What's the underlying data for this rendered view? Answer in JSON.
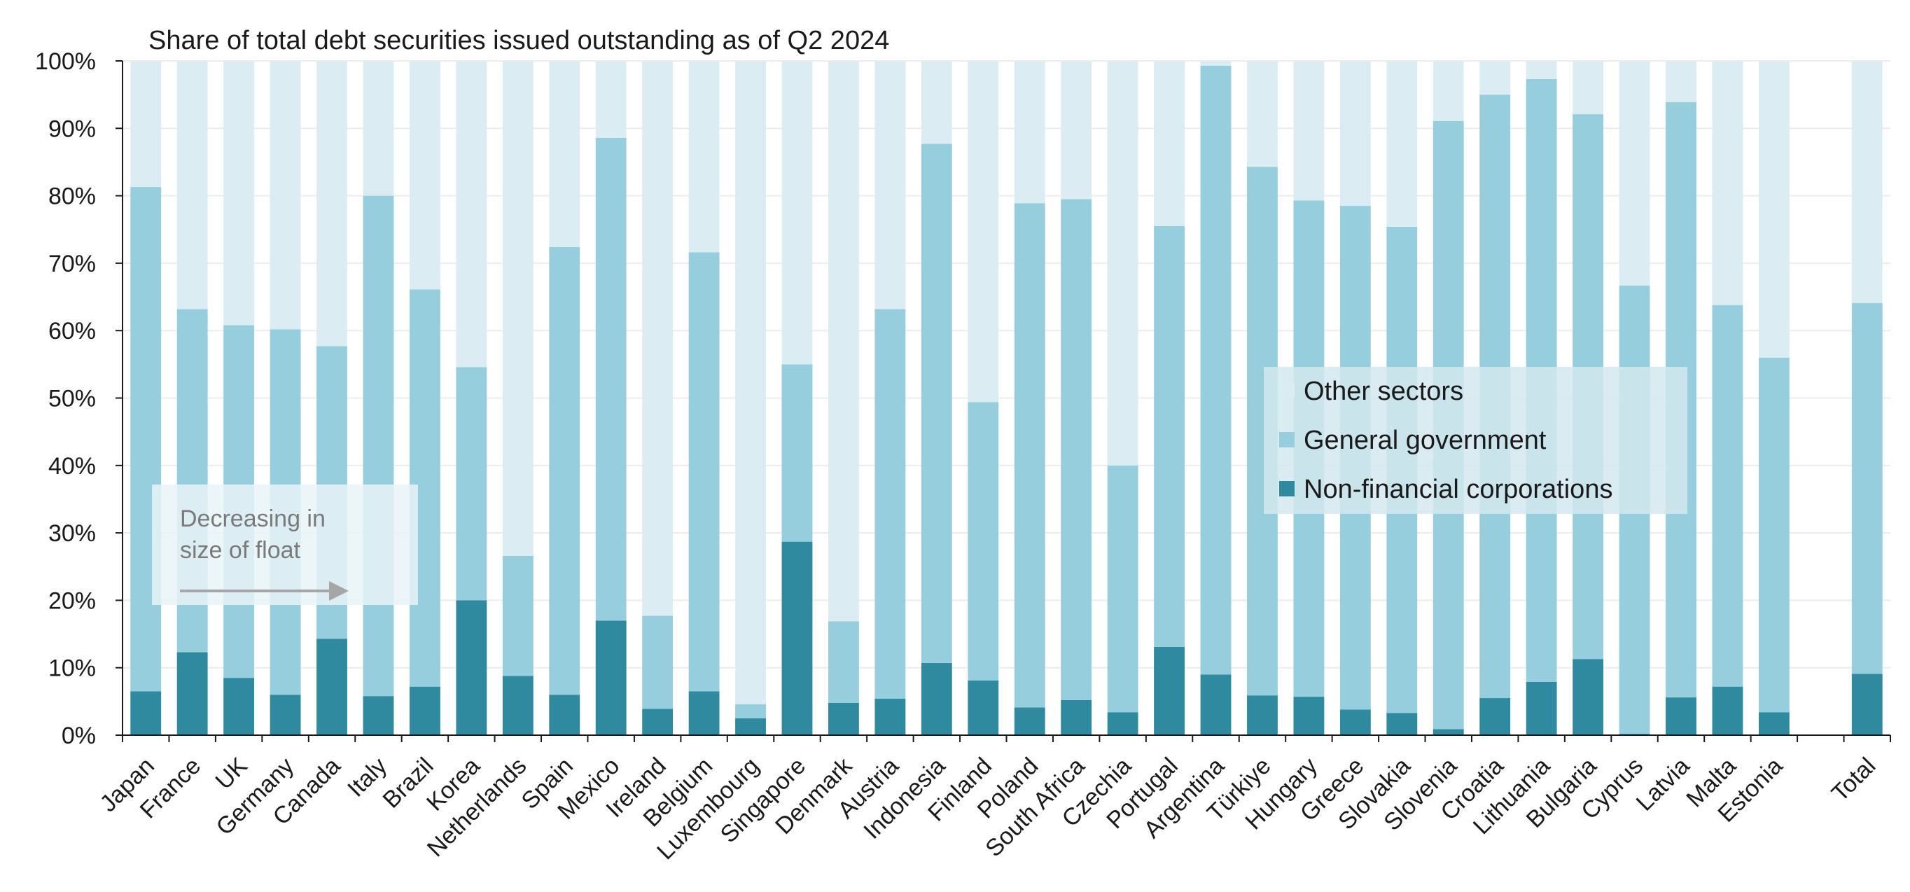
{
  "chart_data": {
    "type": "bar",
    "stacked": true,
    "title": "Share of total debt securities issued outstanding as of Q2 2024",
    "xlabel": "",
    "ylabel": "",
    "ylim": [
      0,
      100
    ],
    "yticks": [
      "0%",
      "10%",
      "20%",
      "30%",
      "40%",
      "50%",
      "60%",
      "70%",
      "80%",
      "90%",
      "100%"
    ],
    "grid": true,
    "legend_position": "center-right",
    "categories": [
      "Japan",
      "France",
      "UK",
      "Germany",
      "Canada",
      "Italy",
      "Brazil",
      "Korea",
      "Netherlands",
      "Spain",
      "Mexico",
      "Ireland",
      "Belgium",
      "Luxembourg",
      "Singapore",
      "Denmark",
      "Austria",
      "Indonesia",
      "Finland",
      "Poland",
      "South Africa",
      "Czechia",
      "Portugal",
      "Argentina",
      "Türkiye",
      "Hungary",
      "Greece",
      "Slovakia",
      "Slovenia",
      "Croatia",
      "Lithuania",
      "Bulgaria",
      "Cyprus",
      "Latvia",
      "Malta",
      "Estonia",
      "",
      "Total"
    ],
    "series": [
      {
        "name": "Non-financial corporations",
        "color": "#2f8aa0",
        "values": [
          6.5,
          12.3,
          8.5,
          6.0,
          14.3,
          5.8,
          7.2,
          20.0,
          8.8,
          6.0,
          17.0,
          3.9,
          6.5,
          2.5,
          28.7,
          4.8,
          5.4,
          10.7,
          8.1,
          4.1,
          5.2,
          3.4,
          13.1,
          9.0,
          5.9,
          5.7,
          3.8,
          3.3,
          0.9,
          5.5,
          7.9,
          11.3,
          0.2,
          5.6,
          7.2,
          3.4,
          null,
          9.1
        ]
      },
      {
        "name": "General government",
        "color": "#96ceDE",
        "values": [
          74.8,
          50.9,
          52.3,
          54.2,
          43.4,
          74.2,
          58.9,
          34.6,
          17.8,
          66.4,
          71.6,
          13.8,
          65.1,
          2.1,
          26.3,
          12.1,
          57.8,
          77.0,
          41.3,
          74.8,
          74.3,
          36.6,
          62.4,
          90.3,
          78.4,
          73.6,
          74.7,
          72.1,
          90.2,
          89.5,
          89.4,
          80.8,
          66.5,
          88.3,
          56.6,
          52.6,
          null,
          55.0
        ]
      },
      {
        "name": "Other sectors",
        "color": "#dbedf3",
        "values": [
          18.7,
          36.8,
          39.2,
          39.8,
          42.3,
          20.0,
          33.9,
          45.4,
          73.4,
          27.6,
          11.4,
          82.3,
          28.4,
          95.4,
          45.0,
          83.1,
          36.8,
          12.3,
          50.6,
          21.1,
          20.5,
          60.0,
          24.5,
          0.7,
          15.7,
          20.7,
          21.5,
          24.6,
          8.9,
          5.0,
          2.7,
          7.9,
          33.3,
          6.1,
          36.2,
          44.0,
          null,
          35.9
        ]
      }
    ],
    "annotation": {
      "text_lines": [
        "Decreasing in",
        "size of float"
      ]
    }
  },
  "colors": {
    "axis": "#1a1a1a",
    "grid": "#ececec",
    "annotation_box": "#e9f3f7",
    "annotation_arrow": "#a6a6a6",
    "legend_box": "#d4e8ef"
  }
}
